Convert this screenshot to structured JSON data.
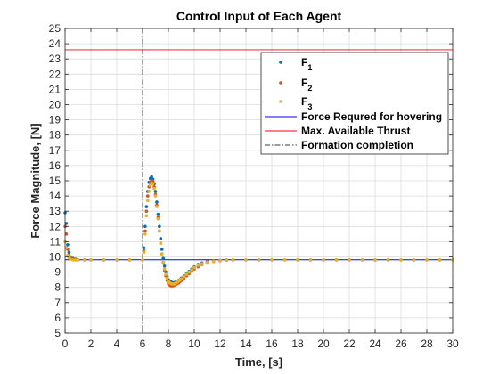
{
  "chart_data": {
    "type": "scatter",
    "title": "Control Input of Each Agent",
    "xlabel": "Time, [s]",
    "ylabel": "Force Magnitude, [N]",
    "xlim": [
      0,
      30
    ],
    "ylim": [
      5,
      25
    ],
    "xticks": [
      0,
      2,
      4,
      6,
      8,
      10,
      12,
      14,
      16,
      18,
      20,
      22,
      24,
      26,
      28,
      30
    ],
    "yticks": [
      5,
      6,
      7,
      8,
      9,
      10,
      11,
      12,
      13,
      14,
      15,
      16,
      17,
      18,
      19,
      20,
      21,
      22,
      23,
      24,
      25
    ],
    "grid": true,
    "legend_position": "top-right",
    "series": [
      {
        "name": "F",
        "subscript": "1",
        "kind": "points",
        "color": "#0072BD",
        "x": [
          0,
          0.1,
          0.2,
          0.3,
          0.4,
          0.6,
          0.8,
          1.0,
          1.5,
          2,
          3,
          4,
          5,
          6,
          6.1,
          6.2,
          6.3,
          6.4,
          6.5,
          6.6,
          6.7,
          6.8,
          6.9,
          7.0,
          7.1,
          7.2,
          7.3,
          7.4,
          7.5,
          7.6,
          7.7,
          7.8,
          7.9,
          8.0,
          8.1,
          8.2,
          8.3,
          8.4,
          8.5,
          8.6,
          8.7,
          8.8,
          8.9,
          9.0,
          9.2,
          9.4,
          9.6,
          9.8,
          10.0,
          10.3,
          10.6,
          11.0,
          11.5,
          12.0,
          12.5,
          13.0,
          14.0,
          15.0,
          16,
          17,
          18,
          19,
          20,
          21,
          22,
          23,
          24,
          25,
          26,
          27,
          28,
          29,
          30
        ],
        "y": [
          12.9,
          12.2,
          10.8,
          10.3,
          10.0,
          9.9,
          9.85,
          9.8,
          9.8,
          9.8,
          9.8,
          9.8,
          9.8,
          9.8,
          10.6,
          12.0,
          13.3,
          14.3,
          14.9,
          15.15,
          15.25,
          15.1,
          14.8,
          14.3,
          13.6,
          12.8,
          12.0,
          11.2,
          10.5,
          9.9,
          9.4,
          9.0,
          8.7,
          8.5,
          8.4,
          8.35,
          8.3,
          8.3,
          8.32,
          8.35,
          8.4,
          8.45,
          8.5,
          8.6,
          8.75,
          8.9,
          9.05,
          9.2,
          9.35,
          9.5,
          9.6,
          9.7,
          9.75,
          9.78,
          9.8,
          9.8,
          9.8,
          9.8,
          9.8,
          9.8,
          9.8,
          9.8,
          9.8,
          9.8,
          9.8,
          9.8,
          9.8,
          9.8,
          9.8,
          9.8,
          9.8,
          9.8,
          9.8
        ]
      },
      {
        "name": "F",
        "subscript": "2",
        "kind": "points",
        "color": "#D95319",
        "x": [
          0,
          0.1,
          0.2,
          0.3,
          0.4,
          0.6,
          0.8,
          1.0,
          1.5,
          2,
          3,
          4,
          5,
          6,
          6.1,
          6.2,
          6.3,
          6.4,
          6.5,
          6.6,
          6.7,
          6.8,
          6.9,
          7.0,
          7.1,
          7.2,
          7.3,
          7.4,
          7.5,
          7.6,
          7.7,
          7.8,
          7.9,
          8.0,
          8.1,
          8.2,
          8.3,
          8.4,
          8.5,
          8.6,
          8.7,
          8.8,
          8.9,
          9.0,
          9.2,
          9.4,
          9.6,
          9.8,
          10.0,
          10.3,
          10.6,
          11.0,
          11.5,
          12.0,
          12.5,
          13.0,
          14.0,
          15.0,
          16,
          17,
          18,
          19,
          20,
          21,
          22,
          23,
          24,
          25,
          26,
          27,
          28,
          29,
          30
        ],
        "y": [
          12.0,
          11.5,
          10.5,
          10.1,
          9.95,
          9.85,
          9.8,
          9.8,
          9.8,
          9.8,
          9.8,
          9.8,
          9.8,
          9.8,
          10.4,
          11.7,
          13.0,
          14.0,
          14.6,
          14.9,
          15.0,
          14.95,
          14.6,
          14.1,
          13.4,
          12.6,
          11.7,
          10.9,
          10.2,
          9.6,
          9.1,
          8.75,
          8.45,
          8.25,
          8.15,
          8.1,
          8.1,
          8.12,
          8.15,
          8.2,
          8.25,
          8.3,
          8.38,
          8.45,
          8.6,
          8.75,
          8.9,
          9.05,
          9.2,
          9.35,
          9.5,
          9.6,
          9.7,
          9.75,
          9.78,
          9.8,
          9.8,
          9.8,
          9.8,
          9.8,
          9.8,
          9.8,
          9.8,
          9.8,
          9.8,
          9.8,
          9.8,
          9.8,
          9.8,
          9.8,
          9.8,
          9.8,
          9.8
        ]
      },
      {
        "name": "F",
        "subscript": "3",
        "kind": "points",
        "color": "#EDB120",
        "x": [
          0,
          0.1,
          0.2,
          0.3,
          0.4,
          0.6,
          0.8,
          1.0,
          1.5,
          2,
          3,
          4,
          5,
          6,
          6.1,
          6.2,
          6.3,
          6.4,
          6.5,
          6.6,
          6.7,
          6.8,
          6.9,
          7.0,
          7.1,
          7.2,
          7.3,
          7.4,
          7.5,
          7.6,
          7.7,
          7.8,
          7.9,
          8.0,
          8.1,
          8.2,
          8.3,
          8.4,
          8.5,
          8.6,
          8.7,
          8.8,
          8.9,
          9.0,
          9.2,
          9.4,
          9.6,
          9.8,
          10.0,
          10.3,
          10.6,
          11.0,
          11.5,
          12.0,
          12.5,
          13.0,
          14.0,
          15.0,
          16,
          17,
          18,
          19,
          20,
          21,
          22,
          23,
          24,
          25,
          26,
          27,
          28,
          29,
          30
        ],
        "y": [
          11.0,
          10.6,
          10.1,
          9.95,
          9.85,
          9.8,
          9.8,
          9.8,
          9.8,
          9.8,
          9.8,
          9.8,
          9.8,
          9.8,
          10.3,
          11.5,
          12.7,
          13.7,
          14.3,
          14.7,
          14.85,
          14.8,
          14.5,
          14.0,
          13.3,
          12.5,
          11.7,
          10.9,
          10.2,
          9.65,
          9.2,
          8.85,
          8.6,
          8.4,
          8.3,
          8.25,
          8.22,
          8.22,
          8.25,
          8.3,
          8.35,
          8.4,
          8.48,
          8.55,
          8.7,
          8.85,
          9.0,
          9.15,
          9.3,
          9.45,
          9.55,
          9.65,
          9.72,
          9.77,
          9.8,
          9.8,
          9.8,
          9.8,
          9.8,
          9.8,
          9.8,
          9.8,
          9.8,
          9.8,
          9.8,
          9.8,
          9.8,
          9.8,
          9.8,
          9.8,
          9.8,
          9.8,
          9.8
        ]
      },
      {
        "name": "Force Requred for hovering",
        "kind": "hline",
        "color": "#0000FF",
        "y": 9.81
      },
      {
        "name": "Max. Available Thrust",
        "kind": "hline",
        "color": "#FF0000",
        "y": 23.6
      },
      {
        "name": "Formation completion",
        "kind": "vline",
        "color": "#000000",
        "x": 6
      }
    ]
  }
}
